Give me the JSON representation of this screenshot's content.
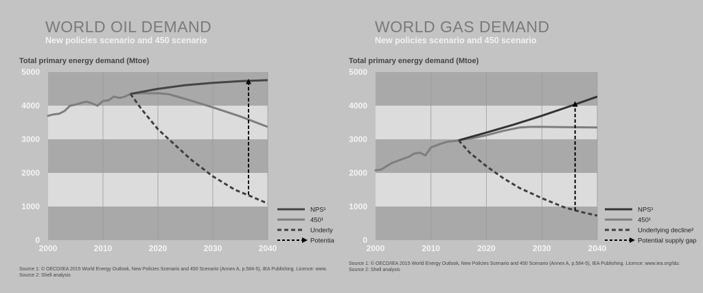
{
  "chart_data": [
    {
      "type": "line",
      "title": "WORLD OIL DEMAND",
      "subtitle": "New policies scenario and 450 scenario",
      "ylabel": "Total primary energy demand (Mtoe)",
      "xlim": [
        2000,
        2040
      ],
      "ylim": [
        0,
        5000
      ],
      "xticks": [
        "2000",
        "2010",
        "2020",
        "2030",
        "2040"
      ],
      "yticks": [
        "0",
        "1000",
        "2000",
        "3000",
        "4000",
        "5000"
      ],
      "series": [
        {
          "name": "NPS¹",
          "color": "#444444",
          "style": "solid",
          "x": [
            2015,
            2020,
            2025,
            2030,
            2035,
            2040
          ],
          "y": [
            4350,
            4500,
            4610,
            4680,
            4730,
            4760
          ]
        },
        {
          "name": "450¹",
          "color": "#7e7e7e",
          "style": "solid",
          "x": [
            2015,
            2017,
            2020,
            2022,
            2025,
            2030,
            2035,
            2040
          ],
          "y": [
            4350,
            4370,
            4370,
            4340,
            4200,
            3950,
            3680,
            3370
          ]
        },
        {
          "name": "Underly",
          "color": "#3f3f3f",
          "style": "dashed",
          "x": [
            2015,
            2017,
            2020,
            2023,
            2026,
            2030,
            2034,
            2037,
            2040
          ],
          "y": [
            4350,
            3900,
            3300,
            2850,
            2400,
            1900,
            1500,
            1300,
            1090
          ]
        },
        {
          "name": "Potentia",
          "color": "#000000",
          "style": "dotted-arrow",
          "x": [
            2036.5,
            2036.5
          ],
          "y": [
            1350,
            4720
          ]
        }
      ],
      "history": {
        "color": "#7e7e7e",
        "x": [
          2000,
          2001,
          2002,
          2003,
          2004,
          2005,
          2006,
          2007,
          2008,
          2009,
          2010,
          2011,
          2012,
          2013,
          2014,
          2015
        ],
        "y": [
          3700,
          3740,
          3760,
          3840,
          4000,
          4030,
          4080,
          4120,
          4070,
          4000,
          4140,
          4160,
          4270,
          4230,
          4270,
          4350
        ]
      },
      "grid": true,
      "legend_position": "right",
      "sources": [
        "Source 1: © OECD/IEA 2015 World Energy Outlook, New Policies Scenario and 450 Scenario (Annex A, p.584-5), IEA Publishing. Licence: www.",
        "Source 2: Shell analysis"
      ]
    },
    {
      "type": "line",
      "title": "WORLD GAS DEMAND",
      "subtitle": "New policies scenario and 450 scenario",
      "ylabel": "Total primary energy demand (Mtoe)",
      "xlim": [
        2000,
        2040
      ],
      "ylim": [
        0,
        5000
      ],
      "xticks": [
        "2000",
        "2010",
        "2020",
        "2030",
        "2040"
      ],
      "yticks": [
        "0",
        "1000",
        "2000",
        "3000",
        "4000",
        "5000"
      ],
      "series": [
        {
          "name": "NPS¹",
          "color": "#333333",
          "style": "solid",
          "x": [
            2015,
            2020,
            2025,
            2030,
            2035,
            2040
          ],
          "y": [
            2970,
            3200,
            3440,
            3700,
            3980,
            4270
          ]
        },
        {
          "name": "450¹",
          "color": "#7e7e7e",
          "style": "solid",
          "x": [
            2015,
            2018,
            2020,
            2023,
            2026,
            2028,
            2030,
            2035,
            2040
          ],
          "y": [
            2970,
            3050,
            3120,
            3250,
            3350,
            3370,
            3370,
            3360,
            3350
          ]
        },
        {
          "name": "Underlying decline²",
          "color": "#3f3f3f",
          "style": "dashed",
          "x": [
            2015,
            2017,
            2020,
            2023,
            2026,
            2030,
            2034,
            2037,
            2040
          ],
          "y": [
            2970,
            2600,
            2200,
            1850,
            1550,
            1250,
            980,
            840,
            730
          ]
        },
        {
          "name": "Potential supply gap",
          "color": "#000000",
          "style": "dotted-arrow",
          "x": [
            2036,
            2036
          ],
          "y": [
            880,
            4050
          ]
        }
      ],
      "history": {
        "color": "#7e7e7e",
        "x": [
          2000,
          2001,
          2002,
          2003,
          2004,
          2005,
          2006,
          2007,
          2008,
          2009,
          2010,
          2011,
          2012,
          2013,
          2014,
          2015
        ],
        "y": [
          2080,
          2100,
          2200,
          2300,
          2360,
          2420,
          2480,
          2580,
          2600,
          2520,
          2760,
          2820,
          2880,
          2930,
          2940,
          2970
        ]
      },
      "grid": true,
      "legend_position": "right",
      "sources": [
        "Source 1: © OECD/IEA 2015 World Energy Outlook, New Policies Scenario and 450 Scenario (Annex A, p.584-5), IEA Publishing. Licence: www.iea.org/t&c",
        "Source 2: Shell analysis"
      ]
    }
  ]
}
